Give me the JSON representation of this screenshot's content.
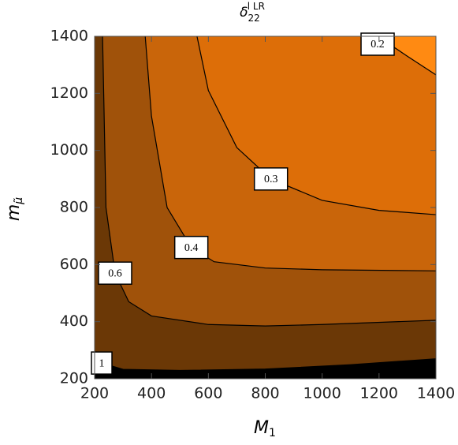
{
  "chart_data": {
    "type": "contour",
    "title": {
      "base": "δ",
      "subscript": "22",
      "superscript": "l LR"
    },
    "x_label": {
      "base": "M",
      "subscript": "1"
    },
    "y_label": {
      "base": "m",
      "subscript": "μ̃"
    },
    "xlim": [
      200,
      1400
    ],
    "ylim": [
      200,
      1400
    ],
    "xticks": [
      200,
      400,
      600,
      800,
      1000,
      1200,
      1400
    ],
    "yticks": [
      200,
      400,
      600,
      800,
      1000,
      1200,
      1400
    ],
    "background_fill": "#000000",
    "contours": [
      {
        "level": 1,
        "fill": "#6b3806",
        "x": [
          200,
          225,
          300,
          500,
          800,
          1100,
          1400
        ],
        "y": [
          262,
          255,
          233,
          229,
          234,
          249,
          270
        ]
      },
      {
        "level": 0.6,
        "fill": "#a0520a",
        "x": [
          228,
          240,
          272,
          320,
          400,
          600,
          800,
          1000,
          1400
        ],
        "y": [
          1400,
          800,
          570,
          470,
          420,
          390,
          385,
          390,
          405
        ]
      },
      {
        "level": 0.4,
        "fill": "#c9650a",
        "x": [
          378,
          400,
          455,
          540,
          620,
          800,
          1000,
          1400
        ],
        "y": [
          1400,
          1120,
          800,
          660,
          610,
          588,
          582,
          578
        ]
      },
      {
        "level": 0.3,
        "fill": "#dd6e08",
        "x": [
          560,
          600,
          700,
          820,
          1000,
          1200,
          1400
        ],
        "y": [
          1400,
          1210,
          1010,
          900,
          825,
          790,
          775
        ]
      },
      {
        "level": 0.2,
        "fill": "#ff8a12",
        "x": [
          1195,
          1300,
          1400
        ],
        "y": [
          1400,
          1330,
          1265
        ]
      }
    ]
  }
}
